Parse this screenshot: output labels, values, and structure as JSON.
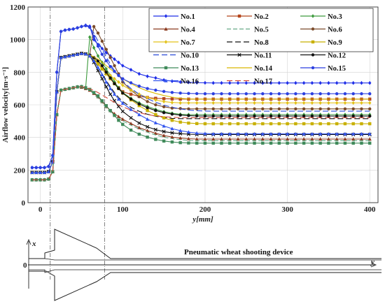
{
  "chart_data": {
    "type": "line",
    "xlabel": "y[mm]",
    "ylabel": "Airflow velocity[m·s⁻¹]",
    "xlim": [
      -15,
      410
    ],
    "ylim": [
      0,
      1200
    ],
    "xticks": [
      "0",
      "100",
      "200",
      "300",
      "400"
    ],
    "yticks": [
      "0",
      "200",
      "400",
      "600",
      "800",
      "1000",
      "1200"
    ],
    "grid": true,
    "legend_position": "top-right",
    "x": [
      -10,
      -5,
      0,
      5,
      10,
      15,
      20,
      25,
      30,
      35,
      40,
      45,
      50,
      55,
      60,
      65,
      70,
      75,
      80,
      85,
      90,
      95,
      100,
      110,
      120,
      130,
      140,
      150,
      160,
      170,
      180,
      190,
      200,
      210,
      220,
      230,
      240,
      250,
      260,
      270,
      280,
      290,
      300,
      310,
      320,
      330,
      340,
      350,
      360,
      370,
      380,
      390,
      400
    ],
    "series": [
      {
        "name": "No.1",
        "color": "#1f2ee8",
        "marker": "diamond",
        "values": [
          215,
          215,
          215,
          215,
          222,
          290,
          800,
          1050,
          1058,
          1062,
          1065,
          1072,
          1080,
          1088,
          1082,
          1000,
          970,
          945,
          920,
          900,
          880,
          860,
          840,
          815,
          790,
          775,
          765,
          752,
          745,
          740,
          738,
          736,
          735,
          734,
          734,
          734,
          734,
          734,
          734,
          734,
          734,
          734,
          734,
          734,
          734,
          734,
          734,
          734,
          734,
          734,
          734,
          734,
          734
        ]
      },
      {
        "name": "No.2",
        "color": "#b5451b",
        "marker": "square",
        "values": [
          185,
          185,
          185,
          185,
          190,
          250,
          680,
          890,
          895,
          900,
          905,
          910,
          915,
          912,
          900,
          880,
          850,
          820,
          790,
          760,
          730,
          705,
          680,
          665,
          652,
          645,
          640,
          638,
          636,
          635,
          635,
          635,
          635,
          635,
          635,
          635,
          635,
          635,
          635,
          635,
          635,
          635,
          635,
          635,
          635,
          635,
          635,
          635,
          635,
          635,
          635,
          635,
          635
        ]
      },
      {
        "name": "No.3",
        "color": "#3c9a3c",
        "marker": "diamond",
        "values": [
          140,
          140,
          140,
          140,
          145,
          190,
          540,
          690,
          695,
          700,
          705,
          710,
          712,
          705,
          1015,
          950,
          900,
          860,
          820,
          780,
          740,
          705,
          675,
          640,
          612,
          590,
          572,
          558,
          548,
          542,
          540,
          540,
          540,
          540,
          540,
          540,
          540,
          540,
          540,
          540,
          540,
          540,
          540,
          540,
          540,
          540,
          540,
          540,
          540,
          540,
          540,
          540,
          540
        ]
      },
      {
        "name": "No.4",
        "color": "#8b3a1f",
        "marker": "triangle",
        "values": [
          140,
          140,
          140,
          140,
          145,
          190,
          540,
          690,
          695,
          700,
          705,
          710,
          708,
          700,
          690,
          670,
          650,
          620,
          590,
          565,
          545,
          528,
          512,
          485,
          460,
          442,
          425,
          412,
          402,
          396,
          392,
          390,
          390,
          390,
          390,
          390,
          390,
          390,
          390,
          390,
          390,
          390,
          390,
          390,
          390,
          390,
          390,
          390,
          390,
          390,
          390,
          390,
          390
        ]
      },
      {
        "name": "No.5",
        "color": "#66aa88",
        "marker": "none",
        "dash": "6,3",
        "values": [
          140,
          140,
          140,
          140,
          145,
          190,
          540,
          690,
          695,
          700,
          705,
          710,
          708,
          700,
          690,
          665,
          640,
          610,
          580,
          555,
          535,
          518,
          502,
          475,
          452,
          432,
          415,
          402,
          392,
          386,
          382,
          380,
          380,
          380,
          380,
          380,
          380,
          380,
          380,
          380,
          380,
          380,
          380,
          380,
          380,
          380,
          380,
          380,
          380,
          380,
          380,
          380,
          380
        ]
      },
      {
        "name": "No.6",
        "color": "#7a4a2a",
        "marker": "circle",
        "values": [
          185,
          185,
          185,
          185,
          190,
          250,
          680,
          890,
          895,
          900,
          905,
          910,
          915,
          912,
          905,
          1080,
          1040,
          990,
          940,
          890,
          840,
          790,
          740,
          690,
          650,
          620,
          600,
          588,
          580,
          577,
          575,
          575,
          575,
          575,
          575,
          575,
          575,
          575,
          575,
          575,
          575,
          575,
          575,
          575,
          575,
          575,
          575,
          575,
          575,
          575,
          575,
          575,
          575
        ]
      },
      {
        "name": "No.7",
        "color": "#e3c21b",
        "marker": "diamond",
        "values": [
          185,
          185,
          185,
          185,
          190,
          250,
          680,
          890,
          895,
          900,
          905,
          910,
          915,
          912,
          900,
          880,
          860,
          830,
          800,
          780,
          760,
          740,
          720,
          690,
          665,
          645,
          630,
          620,
          614,
          612,
          612,
          612,
          612,
          612,
          612,
          612,
          612,
          612,
          612,
          612,
          612,
          612,
          612,
          612,
          612,
          612,
          612,
          612,
          612,
          612,
          612,
          612,
          612
        ]
      },
      {
        "name": "No.8",
        "color": "#111111",
        "marker": "none",
        "dash": "8,4",
        "values": [
          185,
          185,
          185,
          185,
          190,
          250,
          680,
          890,
          895,
          900,
          905,
          910,
          915,
          912,
          900,
          870,
          830,
          790,
          750,
          710,
          675,
          645,
          620,
          585,
          560,
          542,
          530,
          522,
          517,
          515,
          515,
          515,
          515,
          515,
          515,
          515,
          515,
          515,
          515,
          515,
          515,
          515,
          515,
          515,
          515,
          515,
          515,
          515,
          515,
          515,
          515,
          515,
          515
        ]
      },
      {
        "name": "No.9",
        "color": "#c8b000",
        "marker": "square",
        "values": [
          185,
          185,
          185,
          185,
          190,
          250,
          680,
          890,
          895,
          900,
          905,
          910,
          915,
          912,
          900,
          880,
          850,
          820,
          790,
          760,
          730,
          700,
          672,
          630,
          595,
          565,
          540,
          520,
          505,
          494,
          488,
          485,
          484,
          484,
          484,
          484,
          484,
          484,
          484,
          484,
          484,
          484,
          484,
          484,
          484,
          484,
          484,
          484,
          484,
          484,
          484,
          484,
          484
        ]
      },
      {
        "name": "No.10",
        "color": "#2a4ad8",
        "marker": "none",
        "dash": "8,4",
        "values": [
          215,
          215,
          215,
          215,
          222,
          290,
          800,
          1050,
          1058,
          1062,
          1065,
          1072,
          1080,
          1085,
          1075,
          1040,
          990,
          940,
          895,
          850,
          810,
          775,
          745,
          700,
          665,
          638,
          616,
          598,
          585,
          575,
          568,
          564,
          562,
          561,
          561,
          561,
          561,
          561,
          561,
          561,
          561,
          561,
          561,
          561,
          561,
          561,
          561,
          561,
          561,
          561,
          561,
          561,
          561
        ]
      },
      {
        "name": "No.11",
        "color": "#111111",
        "marker": "x",
        "values": [
          185,
          185,
          185,
          185,
          190,
          250,
          680,
          890,
          895,
          900,
          905,
          910,
          915,
          912,
          900,
          860,
          810,
          760,
          710,
          665,
          625,
          590,
          560,
          520,
          488,
          465,
          448,
          436,
          428,
          423,
          420,
          418,
          418,
          418,
          418,
          418,
          418,
          418,
          418,
          418,
          418,
          418,
          418,
          418,
          418,
          418,
          418,
          418,
          418,
          418,
          418,
          418,
          418
        ]
      },
      {
        "name": "No.12",
        "color": "#111111",
        "marker": "circle",
        "values": [
          185,
          185,
          185,
          185,
          190,
          250,
          680,
          890,
          895,
          900,
          905,
          910,
          915,
          912,
          905,
          890,
          870,
          840,
          800,
          765,
          730,
          700,
          672,
          635,
          605,
          582,
          565,
          552,
          543,
          537,
          534,
          532,
          531,
          531,
          531,
          531,
          531,
          531,
          531,
          531,
          531,
          531,
          531,
          531,
          531,
          531,
          531,
          531,
          531,
          531,
          531,
          531,
          531
        ]
      },
      {
        "name": "No.13",
        "color": "#3f8a5a",
        "marker": "square",
        "values": [
          140,
          140,
          140,
          140,
          145,
          190,
          540,
          690,
          695,
          700,
          705,
          710,
          712,
          705,
          695,
          675,
          655,
          625,
          595,
          565,
          535,
          505,
          480,
          445,
          420,
          402,
          388,
          378,
          372,
          368,
          366,
          365,
          365,
          365,
          365,
          365,
          365,
          365,
          365,
          365,
          365,
          365,
          365,
          365,
          365,
          365,
          365,
          365,
          365,
          365,
          365,
          365,
          365
        ]
      },
      {
        "name": "No.14",
        "color": "#d9b800",
        "marker": "none",
        "values": [
          185,
          185,
          185,
          185,
          190,
          250,
          680,
          890,
          895,
          900,
          905,
          910,
          915,
          912,
          905,
          895,
          880,
          860,
          840,
          820,
          800,
          780,
          760,
          730,
          705,
          685,
          670,
          657,
          647,
          640,
          636,
          635,
          635,
          635,
          635,
          635,
          635,
          635,
          635,
          635,
          635,
          635,
          635,
          635,
          635,
          635,
          635,
          635,
          635,
          635,
          635,
          635,
          635
        ]
      },
      {
        "name": "No.15",
        "color": "#2b3fe0",
        "marker": "circle",
        "values": [
          215,
          215,
          215,
          215,
          222,
          290,
          800,
          1050,
          1058,
          1062,
          1065,
          1072,
          1080,
          1085,
          1075,
          1020,
          960,
          910,
          870,
          835,
          805,
          780,
          760,
          735,
          715,
          700,
          690,
          682,
          676,
          672,
          670,
          669,
          668,
          668,
          668,
          668,
          668,
          668,
          668,
          668,
          668,
          668,
          668,
          668,
          668,
          668,
          668,
          668,
          668,
          668,
          668,
          668,
          668
        ]
      },
      {
        "name": "No.16",
        "color": "#3355ee",
        "marker": "triangle",
        "values": [
          185,
          185,
          185,
          185,
          190,
          250,
          680,
          890,
          895,
          900,
          905,
          910,
          915,
          912,
          900,
          870,
          830,
          785,
          740,
          700,
          665,
          635,
          610,
          572,
          540,
          512,
          490,
          470,
          454,
          442,
          433,
          427,
          424,
          422,
          422,
          422,
          422,
          422,
          422,
          422,
          422,
          422,
          422,
          422,
          422,
          422,
          422,
          422,
          422,
          422,
          422,
          422,
          422
        ]
      },
      {
        "name": "No.17",
        "color": "#d04a3a",
        "marker": "none",
        "dash": "8,4",
        "values": [
          140,
          140,
          140,
          140,
          145,
          190,
          540,
          690,
          695,
          700,
          705,
          710,
          712,
          705,
          698,
          688,
          675,
          660,
          645,
          630,
          615,
          600,
          588,
          568,
          552,
          540,
          532,
          527,
          524,
          522,
          521,
          521,
          521,
          521,
          521,
          521,
          521,
          521,
          521,
          521,
          521,
          521,
          521,
          521,
          521,
          521,
          521,
          521,
          521,
          521,
          521,
          521,
          521
        ]
      }
    ]
  },
  "device": {
    "label": "Pneumatic wheat shooting device",
    "x_axis_label": "x",
    "y_axis_label": "y",
    "origin_label": "0"
  }
}
